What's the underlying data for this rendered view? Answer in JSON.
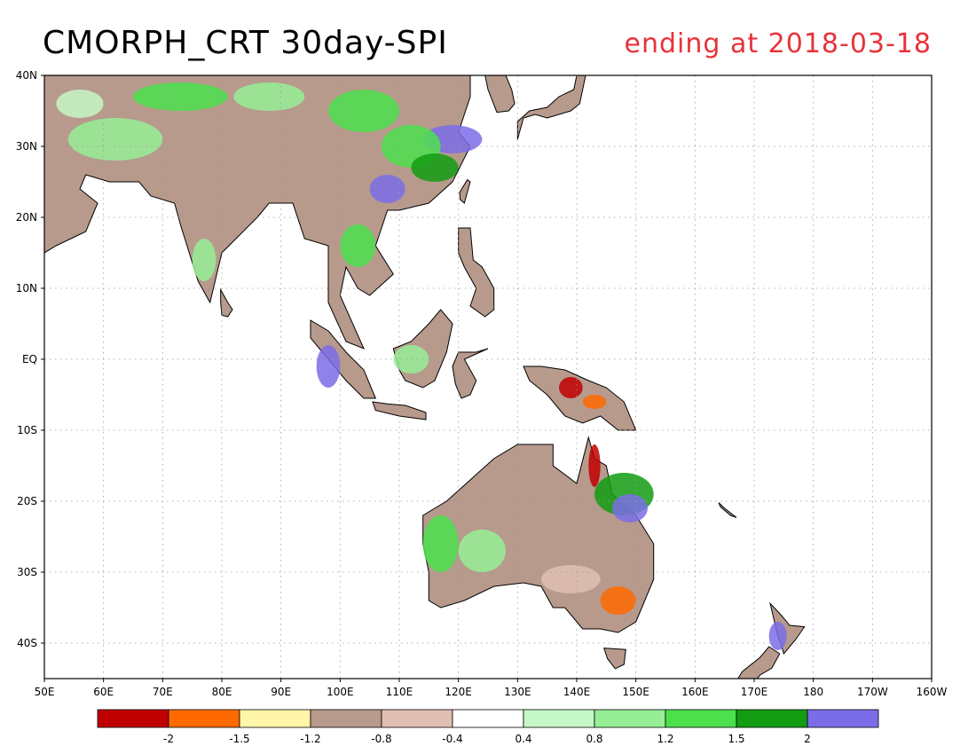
{
  "header": {
    "title": "CMORPH_CRT 30day-SPI",
    "subtitle": "ending at 2018-03-18",
    "subtitle_color": "#e8323a"
  },
  "map": {
    "projection": "equirectangular",
    "lon_range": [
      50,
      200
    ],
    "lat_range": [
      -45,
      40
    ],
    "grid": "dotted",
    "lat_ticks": [
      {
        "value": 40,
        "label": "40N"
      },
      {
        "value": 30,
        "label": "30N"
      },
      {
        "value": 20,
        "label": "20N"
      },
      {
        "value": 10,
        "label": "10N"
      },
      {
        "value": 0,
        "label": "EQ"
      },
      {
        "value": -10,
        "label": "10S"
      },
      {
        "value": -20,
        "label": "20S"
      },
      {
        "value": -30,
        "label": "30S"
      },
      {
        "value": -40,
        "label": "40S"
      }
    ],
    "lon_ticks": [
      {
        "value": 50,
        "label": "50E"
      },
      {
        "value": 60,
        "label": "60E"
      },
      {
        "value": 70,
        "label": "70E"
      },
      {
        "value": 80,
        "label": "80E"
      },
      {
        "value": 90,
        "label": "90E"
      },
      {
        "value": 100,
        "label": "100E"
      },
      {
        "value": 110,
        "label": "110E"
      },
      {
        "value": 120,
        "label": "120E"
      },
      {
        "value": 130,
        "label": "130E"
      },
      {
        "value": 140,
        "label": "140E"
      },
      {
        "value": 150,
        "label": "150E"
      },
      {
        "value": 160,
        "label": "160E"
      },
      {
        "value": 170,
        "label": "170E"
      },
      {
        "value": 180,
        "label": "180"
      },
      {
        "value": 190,
        "label": "170W"
      },
      {
        "value": 200,
        "label": "160W"
      }
    ],
    "landmasses": [
      {
        "name": "asia",
        "fill": "#b79a8c",
        "outline": [
          [
            50,
            40
          ],
          [
            122,
            40
          ],
          [
            122,
            37
          ],
          [
            120,
            32
          ],
          [
            122,
            30
          ],
          [
            119,
            25
          ],
          [
            115,
            22
          ],
          [
            110,
            21
          ],
          [
            108,
            21
          ],
          [
            106,
            16
          ],
          [
            109,
            12
          ],
          [
            105,
            9
          ],
          [
            103,
            10
          ],
          [
            101,
            13
          ],
          [
            100,
            9
          ],
          [
            104,
            1.5
          ],
          [
            101,
            2.5
          ],
          [
            98,
            8
          ],
          [
            98,
            16
          ],
          [
            94,
            17
          ],
          [
            92,
            22
          ],
          [
            88,
            22
          ],
          [
            86,
            20
          ],
          [
            80,
            15
          ],
          [
            78,
            8
          ],
          [
            76,
            11
          ],
          [
            73,
            19
          ],
          [
            72,
            22
          ],
          [
            68,
            23
          ],
          [
            66,
            25
          ],
          [
            61,
            25
          ],
          [
            57,
            26
          ],
          [
            56,
            24
          ],
          [
            59,
            22
          ],
          [
            57,
            18
          ],
          [
            52,
            16
          ],
          [
            50,
            15
          ]
        ]
      },
      {
        "name": "australia",
        "fill": "#b79a8c",
        "outline": [
          [
            114,
            -22
          ],
          [
            118,
            -20
          ],
          [
            122,
            -17
          ],
          [
            126,
            -14
          ],
          [
            130,
            -12
          ],
          [
            133,
            -12
          ],
          [
            136,
            -12
          ],
          [
            136,
            -15
          ],
          [
            140,
            -17.5
          ],
          [
            142,
            -11
          ],
          [
            143,
            -14
          ],
          [
            145,
            -15
          ],
          [
            146,
            -19
          ],
          [
            150,
            -22
          ],
          [
            153,
            -26
          ],
          [
            153,
            -31
          ],
          [
            150,
            -37
          ],
          [
            147,
            -38.5
          ],
          [
            144,
            -38
          ],
          [
            141,
            -38
          ],
          [
            138,
            -35
          ],
          [
            136,
            -35
          ],
          [
            134,
            -32
          ],
          [
            131,
            -31.5
          ],
          [
            126,
            -32
          ],
          [
            121,
            -34
          ],
          [
            117,
            -35
          ],
          [
            115,
            -34
          ],
          [
            115,
            -30
          ],
          [
            114,
            -26
          ]
        ]
      },
      {
        "name": "new-guinea",
        "fill": "#b79a8c",
        "outline": [
          [
            131,
            -1
          ],
          [
            134,
            -1
          ],
          [
            138,
            -1.5
          ],
          [
            142,
            -3
          ],
          [
            145,
            -4
          ],
          [
            148,
            -6
          ],
          [
            150,
            -10
          ],
          [
            147,
            -10
          ],
          [
            144,
            -8
          ],
          [
            141,
            -9
          ],
          [
            138,
            -8
          ],
          [
            135,
            -5
          ],
          [
            132,
            -3
          ]
        ]
      },
      {
        "name": "borneo",
        "fill": "#b79a8c",
        "outline": [
          [
            109,
            1.5
          ],
          [
            112,
            2.5
          ],
          [
            115,
            5
          ],
          [
            117,
            7
          ],
          [
            119,
            5
          ],
          [
            118,
            1
          ],
          [
            116,
            -3
          ],
          [
            114,
            -4
          ],
          [
            111,
            -3
          ],
          [
            110,
            -1.5
          ]
        ]
      },
      {
        "name": "sumatra",
        "fill": "#b79a8c",
        "outline": [
          [
            95,
            5.5
          ],
          [
            98,
            4
          ],
          [
            101,
            1
          ],
          [
            104,
            -1.5
          ],
          [
            106,
            -5.5
          ],
          [
            104,
            -5.5
          ],
          [
            101,
            -3
          ],
          [
            98,
            0
          ],
          [
            95,
            3
          ]
        ]
      },
      {
        "name": "java",
        "fill": "#b79a8c",
        "outline": [
          [
            105.5,
            -6
          ],
          [
            108,
            -6.3
          ],
          [
            111,
            -6.5
          ],
          [
            114.5,
            -7.5
          ],
          [
            114.5,
            -8.5
          ],
          [
            110,
            -8
          ],
          [
            106,
            -7.2
          ]
        ]
      },
      {
        "name": "sulawesi",
        "fill": "#b79a8c",
        "outline": [
          [
            119,
            -1
          ],
          [
            120,
            1
          ],
          [
            123,
            1
          ],
          [
            125,
            1.5
          ],
          [
            121,
            0
          ],
          [
            123,
            -3
          ],
          [
            122,
            -5
          ],
          [
            120.5,
            -5.5
          ],
          [
            119.5,
            -3.5
          ]
        ]
      },
      {
        "name": "philippines",
        "fill": "#b79a8c",
        "outline": [
          [
            120,
            18.5
          ],
          [
            122,
            18.5
          ],
          [
            122.5,
            14
          ],
          [
            124,
            13
          ],
          [
            126,
            10
          ],
          [
            126,
            7
          ],
          [
            124.5,
            6
          ],
          [
            122,
            7.5
          ],
          [
            123,
            10
          ],
          [
            121,
            13
          ],
          [
            120,
            15
          ]
        ]
      },
      {
        "name": "japan",
        "fill": "#b79a8c",
        "outline": [
          [
            130,
            31
          ],
          [
            131,
            34
          ],
          [
            133,
            34.5
          ],
          [
            135,
            34
          ],
          [
            137,
            34.5
          ],
          [
            139,
            35
          ],
          [
            140.5,
            36
          ],
          [
            141,
            38
          ],
          [
            141.5,
            40
          ],
          [
            140,
            40
          ],
          [
            139.5,
            38
          ],
          [
            137,
            37
          ],
          [
            135,
            35.5
          ],
          [
            132,
            35
          ],
          [
            130,
            33.5
          ]
        ]
      },
      {
        "name": "korea",
        "fill": "#b79a8c",
        "outline": [
          [
            125,
            38
          ],
          [
            126.5,
            34.8
          ],
          [
            128.5,
            35
          ],
          [
            129.5,
            36
          ],
          [
            129,
            38
          ],
          [
            128,
            40
          ],
          [
            124.5,
            40
          ]
        ]
      },
      {
        "name": "taiwan",
        "fill": "#b79a8c",
        "outline": [
          [
            120.3,
            22.5
          ],
          [
            121,
            22
          ],
          [
            122,
            25
          ],
          [
            121.5,
            25.3
          ],
          [
            120.2,
            23.5
          ]
        ]
      },
      {
        "name": "sri-lanka",
        "fill": "#b79a8c",
        "outline": [
          [
            79.8,
            9.8
          ],
          [
            81,
            8
          ],
          [
            81.8,
            7
          ],
          [
            81,
            6
          ],
          [
            80,
            6.2
          ],
          [
            79.8,
            8
          ]
        ]
      },
      {
        "name": "new-zealand-north",
        "fill": "#b79a8c",
        "outline": [
          [
            172.7,
            -34.4
          ],
          [
            174.5,
            -36
          ],
          [
            176,
            -37.5
          ],
          [
            178.5,
            -37.7
          ],
          [
            177,
            -39.5
          ],
          [
            175,
            -41.5
          ],
          [
            174.5,
            -40
          ],
          [
            174,
            -39
          ]
        ]
      },
      {
        "name": "new-zealand-south",
        "fill": "#b79a8c",
        "outline": [
          [
            172.5,
            -40.5
          ],
          [
            174.3,
            -41.5
          ],
          [
            173,
            -43.5
          ],
          [
            171,
            -44.5
          ],
          [
            169,
            -46.5
          ],
          [
            166.5,
            -46
          ],
          [
            168,
            -44
          ],
          [
            171,
            -42
          ]
        ]
      },
      {
        "name": "tasmania",
        "fill": "#b79a8c",
        "outline": [
          [
            144.6,
            -40.7
          ],
          [
            148.3,
            -40.9
          ],
          [
            148,
            -43
          ],
          [
            146.5,
            -43.6
          ],
          [
            145.2,
            -42.2
          ]
        ]
      },
      {
        "name": "new-caledonia",
        "fill": "#b79a8c",
        "outline": [
          [
            164,
            -20.2
          ],
          [
            165,
            -21
          ],
          [
            167,
            -22.3
          ],
          [
            166,
            -22
          ],
          [
            164.3,
            -20.8
          ]
        ]
      }
    ],
    "spi_patches": [
      {
        "lon": 119,
        "lat": 31,
        "rx": 5,
        "ry": 2,
        "color": "#7b6de8"
      },
      {
        "lon": 112,
        "lat": 30,
        "rx": 5,
        "ry": 3,
        "color": "#4ce04c"
      },
      {
        "lon": 116,
        "lat": 27,
        "rx": 4,
        "ry": 2,
        "color": "#129c12"
      },
      {
        "lon": 104,
        "lat": 35,
        "rx": 6,
        "ry": 3,
        "color": "#4ce04c"
      },
      {
        "lon": 88,
        "lat": 37,
        "rx": 6,
        "ry": 2,
        "color": "#96ee96"
      },
      {
        "lon": 73,
        "lat": 37,
        "rx": 8,
        "ry": 2,
        "color": "#4ce04c"
      },
      {
        "lon": 62,
        "lat": 31,
        "rx": 8,
        "ry": 3,
        "color": "#96ee96"
      },
      {
        "lon": 56,
        "lat": 36,
        "rx": 4,
        "ry": 2,
        "color": "#c6f7c6"
      },
      {
        "lon": 108,
        "lat": 24,
        "rx": 3,
        "ry": 2,
        "color": "#7b6de8"
      },
      {
        "lon": 103,
        "lat": 16,
        "rx": 3,
        "ry": 3,
        "color": "#4ce04c"
      },
      {
        "lon": 77,
        "lat": 14,
        "rx": 2,
        "ry": 3,
        "color": "#96ee96"
      },
      {
        "lon": 98,
        "lat": -1,
        "rx": 2,
        "ry": 3,
        "color": "#7b6de8"
      },
      {
        "lon": 112,
        "lat": 0,
        "rx": 3,
        "ry": 2,
        "color": "#96ee96"
      },
      {
        "lon": 139,
        "lat": -4,
        "rx": 2,
        "ry": 1.5,
        "color": "#c00000"
      },
      {
        "lon": 143,
        "lat": -6,
        "rx": 2,
        "ry": 1,
        "color": "#ff6a00"
      },
      {
        "lon": 148,
        "lat": -19,
        "rx": 5,
        "ry": 3,
        "color": "#129c12"
      },
      {
        "lon": 149,
        "lat": -21,
        "rx": 3,
        "ry": 2,
        "color": "#7b6de8"
      },
      {
        "lon": 124,
        "lat": -27,
        "rx": 4,
        "ry": 3,
        "color": "#96ee96"
      },
      {
        "lon": 117,
        "lat": -26,
        "rx": 3,
        "ry": 4,
        "color": "#4ce04c"
      },
      {
        "lon": 147,
        "lat": -34,
        "rx": 3,
        "ry": 2,
        "color": "#ff6a00"
      },
      {
        "lon": 139,
        "lat": -31,
        "rx": 5,
        "ry": 2,
        "color": "#e0bfb3"
      },
      {
        "lon": 143,
        "lat": -15,
        "rx": 1,
        "ry": 3,
        "color": "#c00000"
      },
      {
        "lon": 174,
        "lat": -39,
        "rx": 1.5,
        "ry": 2,
        "color": "#7b6de8"
      }
    ]
  },
  "legend": {
    "colors": [
      "#c00000",
      "#ff6a00",
      "#fff5a8",
      "#b79a8c",
      "#e0bfb3",
      "#ffffff",
      "#c6f7c6",
      "#96ee96",
      "#4ce04c",
      "#129c12",
      "#7b6de8"
    ],
    "labels": [
      "-2",
      "-1.5",
      "-1.2",
      "-0.8",
      "-0.4",
      "0.4",
      "0.8",
      "1.2",
      "1.5",
      "2"
    ]
  }
}
